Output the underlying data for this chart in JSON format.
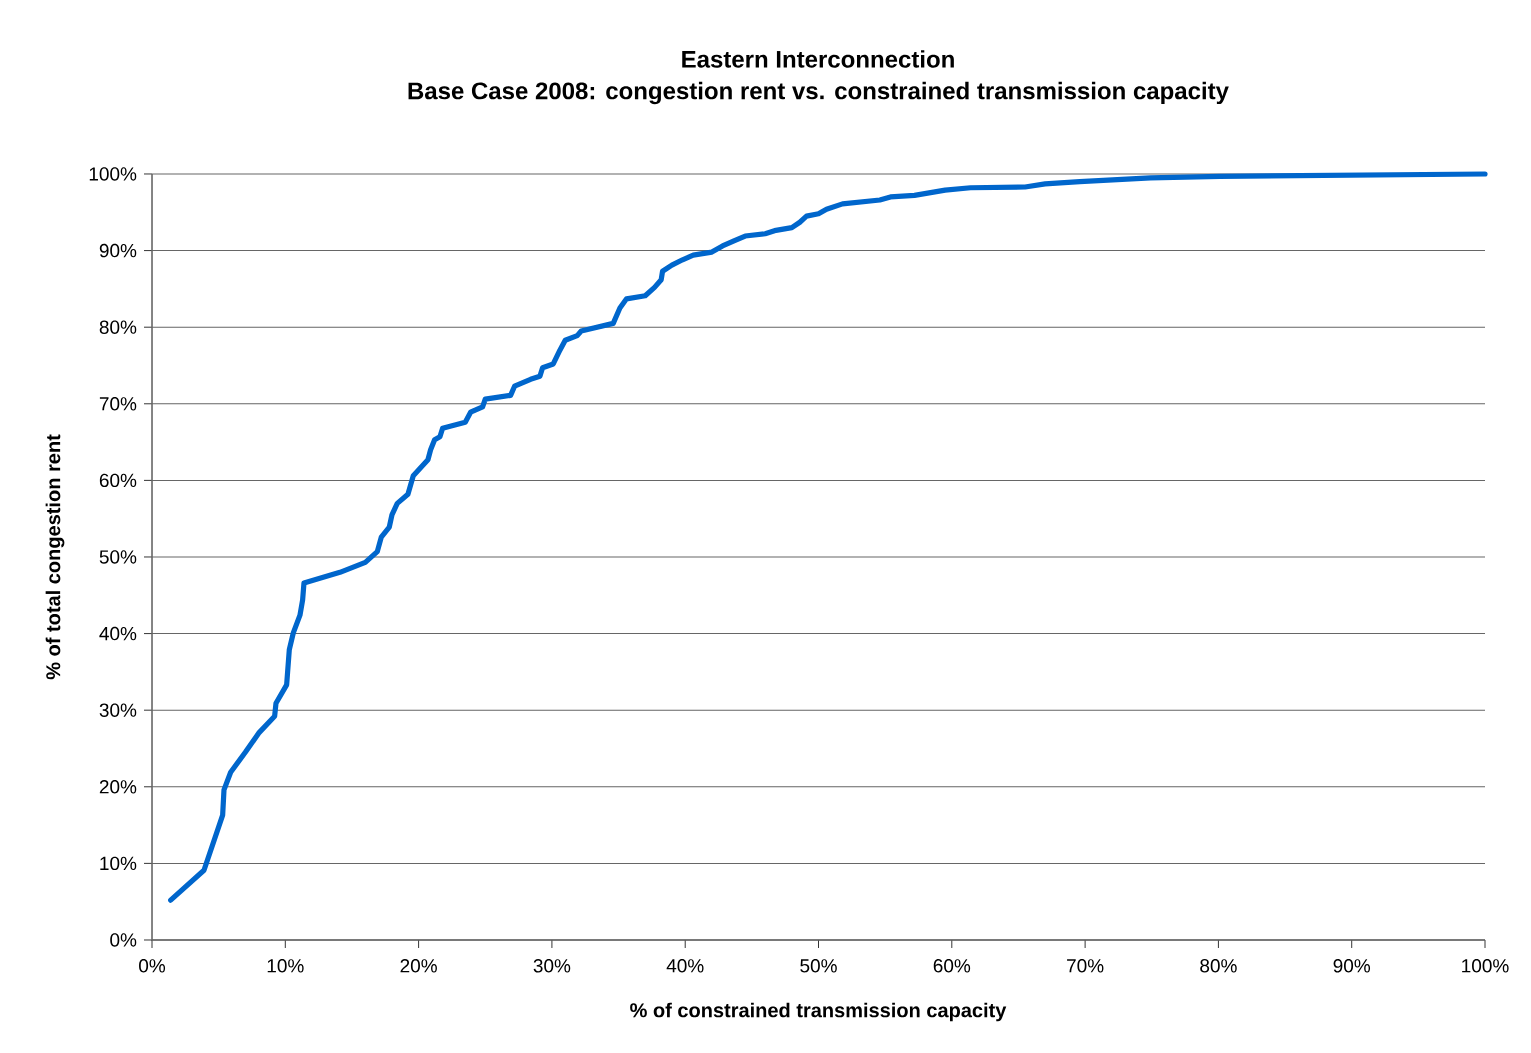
{
  "chart_data": {
    "type": "line",
    "title": "Eastern Interconnection",
    "subtitle": "Base Case 2008: congestion rent vs. constrained transmission capacity",
    "xlabel": "% of constrained transmission capacity",
    "ylabel": "% of total congestion rent",
    "xlim": [
      0,
      100
    ],
    "ylim": [
      0,
      100
    ],
    "xticks": [
      {
        "value": 0,
        "label": "0%"
      },
      {
        "value": 10,
        "label": "10%"
      },
      {
        "value": 20,
        "label": "20%"
      },
      {
        "value": 30,
        "label": "30%"
      },
      {
        "value": 40,
        "label": "40%"
      },
      {
        "value": 50,
        "label": "50%"
      },
      {
        "value": 60,
        "label": "60%"
      },
      {
        "value": 70,
        "label": "70%"
      },
      {
        "value": 80,
        "label": "80%"
      },
      {
        "value": 90,
        "label": "90%"
      },
      {
        "value": 100,
        "label": "100%"
      }
    ],
    "yticks": [
      {
        "value": 0,
        "label": "0%"
      },
      {
        "value": 10,
        "label": "10%"
      },
      {
        "value": 20,
        "label": "20%"
      },
      {
        "value": 30,
        "label": "30%"
      },
      {
        "value": 40,
        "label": "40%"
      },
      {
        "value": 50,
        "label": "50%"
      },
      {
        "value": 60,
        "label": "60%"
      },
      {
        "value": 70,
        "label": "70%"
      },
      {
        "value": 80,
        "label": "80%"
      },
      {
        "value": 90,
        "label": "90%"
      },
      {
        "value": 100,
        "label": "100%"
      }
    ],
    "grid": "y",
    "legend": false,
    "marker": "none",
    "line_style": "solid",
    "x": [
      1.4,
      3.9,
      5.3,
      5.4,
      5.9,
      7.0,
      8.0,
      9.2,
      9.3,
      10.1,
      10.3,
      10.6,
      11.1,
      11.3,
      11.4,
      14.1,
      16.0,
      16.9,
      17.2,
      17.8,
      18.0,
      18.4,
      19.2,
      19.6,
      20.7,
      20.9,
      21.2,
      21.6,
      21.8,
      23.5,
      23.9,
      24.8,
      25.0,
      26.9,
      27.2,
      28.4,
      29.1,
      29.3,
      30.1,
      30.6,
      31.0,
      31.9,
      32.2,
      34.6,
      35.1,
      35.6,
      37.0,
      37.7,
      38.2,
      38.3,
      39.0,
      39.8,
      40.6,
      42.0,
      42.8,
      43.7,
      44.5,
      46.0,
      46.7,
      48.0,
      48.6,
      49.1,
      50.0,
      50.6,
      51.8,
      54.6,
      55.4,
      57.2,
      59.5,
      61.4,
      65.5,
      67.0,
      69.6,
      74.9,
      80.1,
      100
    ],
    "series": [
      {
        "color": "#0066cc",
        "values": [
          5.2,
          9.1,
          16.3,
          19.6,
          21.9,
          24.5,
          27.0,
          29.2,
          30.9,
          33.3,
          37.9,
          40.1,
          42.4,
          44.4,
          46.6,
          48.0,
          49.3,
          50.7,
          52.6,
          53.9,
          55.5,
          57.0,
          58.2,
          60.6,
          62.7,
          64.0,
          65.3,
          65.7,
          66.8,
          67.6,
          68.9,
          69.6,
          70.6,
          71.1,
          72.3,
          73.2,
          73.6,
          74.7,
          75.2,
          77.0,
          78.3,
          78.9,
          79.5,
          80.5,
          82.5,
          83.7,
          84.1,
          85.2,
          86.2,
          87.3,
          88.1,
          88.8,
          89.4,
          89.8,
          90.6,
          91.3,
          91.9,
          92.2,
          92.6,
          93.0,
          93.7,
          94.5,
          94.8,
          95.4,
          96.1,
          96.6,
          97.0,
          97.2,
          97.9,
          98.2,
          98.3,
          98.7,
          99.0,
          99.5,
          99.7,
          100
        ]
      }
    ]
  }
}
